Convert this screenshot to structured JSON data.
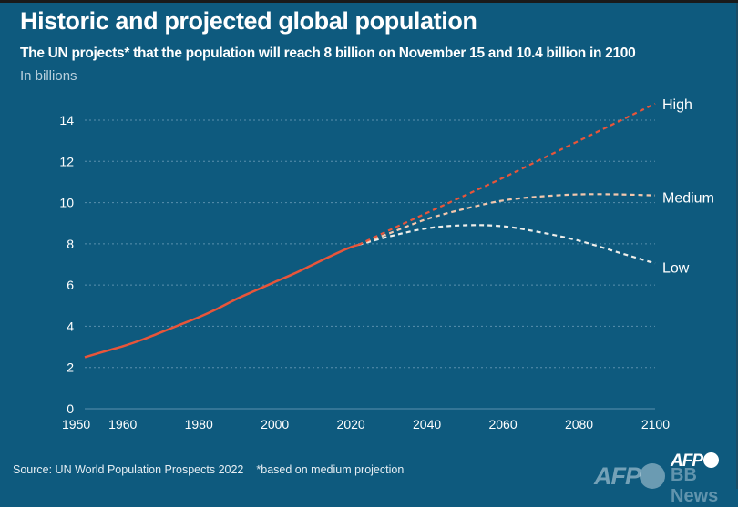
{
  "header": {
    "title": "Historic and projected global population",
    "subtitle": "The UN projects* that the population will reach 8 billion on November 15 and 10.4 billion in 2100",
    "unit": "In billions"
  },
  "footer": {
    "source": "Source: UN World Population Prospects 2022",
    "note": "*based on medium projection"
  },
  "branding": {
    "logo": "AFP",
    "watermark_afp": "AFP",
    "watermark_bb": "BB News"
  },
  "colors": {
    "background": "#0e5a7e",
    "historic": "#e8553a",
    "high": "#e8553a",
    "medium": "#f2c7ad",
    "low": "#eeeeea",
    "grid": "#5a90ad",
    "axis_text": "#ffffff"
  },
  "chart_data": {
    "type": "line",
    "title": "Historic and projected global population",
    "xlabel": "",
    "ylabel": "In billions",
    "xlim": [
      1950,
      2100
    ],
    "ylim": [
      0,
      14
    ],
    "x_ticks": [
      1950,
      1960,
      1980,
      2000,
      2020,
      2040,
      2060,
      2080,
      2100
    ],
    "y_ticks": [
      0,
      2,
      4,
      6,
      8,
      10,
      12,
      14
    ],
    "grid": "horizontal dotted",
    "legend": "inline labels at right end of lines",
    "series": [
      {
        "name": "Historic",
        "style": "solid",
        "x": [
          1950,
          1955,
          1960,
          1965,
          1970,
          1975,
          1980,
          1985,
          1990,
          1995,
          2000,
          2005,
          2010,
          2015,
          2020,
          2022
        ],
        "values": [
          2.5,
          2.77,
          3.03,
          3.34,
          3.7,
          4.07,
          4.44,
          4.86,
          5.33,
          5.74,
          6.15,
          6.55,
          6.99,
          7.43,
          7.84,
          7.95
        ]
      },
      {
        "name": "High",
        "label": "High",
        "style": "dashed",
        "x": [
          2022,
          2030,
          2040,
          2050,
          2060,
          2070,
          2080,
          2090,
          2100
        ],
        "values": [
          7.95,
          8.65,
          9.5,
          10.35,
          11.2,
          12.1,
          13.0,
          13.9,
          14.8
        ]
      },
      {
        "name": "Medium",
        "label": "Medium",
        "style": "dashed",
        "x": [
          2022,
          2030,
          2040,
          2050,
          2060,
          2070,
          2080,
          2090,
          2100
        ],
        "values": [
          7.95,
          8.5,
          9.2,
          9.7,
          10.1,
          10.3,
          10.4,
          10.4,
          10.35
        ]
      },
      {
        "name": "Low",
        "label": "Low",
        "style": "dashed",
        "x": [
          2022,
          2030,
          2040,
          2050,
          2060,
          2070,
          2080,
          2090,
          2100
        ],
        "values": [
          7.95,
          8.35,
          8.75,
          8.9,
          8.85,
          8.55,
          8.15,
          7.6,
          7.05
        ]
      }
    ]
  }
}
